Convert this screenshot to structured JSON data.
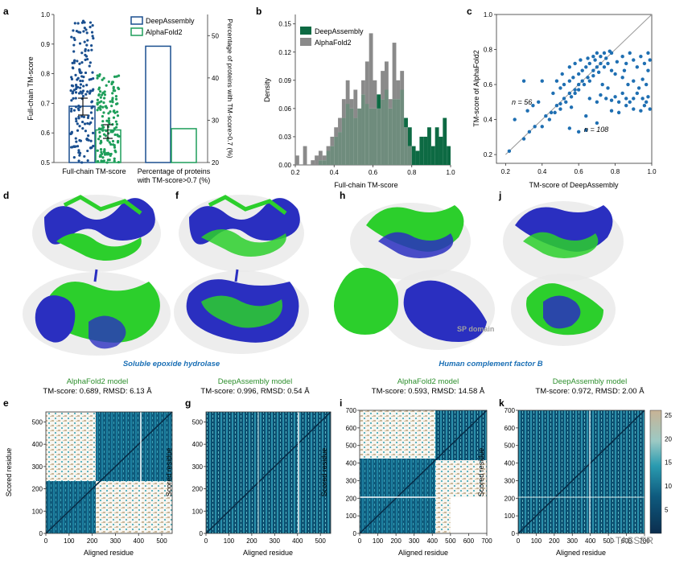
{
  "colors": {
    "deepassembly": "#1a4f8f",
    "alphafold2": "#1e9e5a",
    "da_hist": "#0d6a43",
    "af_hist": "#8a8a8a",
    "overlap_hist": "#6f8c7d",
    "scatter": "#1f6fb2",
    "protein_blue": "#2a2fc0",
    "protein_green": "#2ccf2c",
    "caption_blue": "#1a6fb5",
    "model_green": "#2d8f2d"
  },
  "panels": {
    "a": "a",
    "b": "b",
    "c": "c",
    "d": "d",
    "f": "f",
    "h": "h",
    "j": "j",
    "e": "e",
    "g": "g",
    "i": "i",
    "k": "k"
  },
  "panel_a": {
    "legend": [
      "DeepAssembly",
      "AlphaFold2"
    ],
    "ylabel_left": "Full-chain TM-score",
    "ylabel_right": "Percentage of proteins with TM-score>0.7 (%)",
    "xtick_left": "Full-chain TM-score",
    "xtick_right_line1": "Percentage of proteins",
    "xtick_right_line2": "with TM-score>0.7 (%)",
    "yticks_left": [
      "0.5",
      "0.6",
      "0.7",
      "0.8",
      "0.9",
      "1.0"
    ],
    "yticks_right": [
      "20",
      "30",
      "40",
      "50"
    ]
  },
  "panel_b": {
    "legend": [
      "DeepAssembly",
      "AlphaFold2"
    ],
    "ylabel": "Density",
    "xlabel": "Full-chain TM-score",
    "xticks": [
      "0.2",
      "0.4",
      "0.6",
      "0.8",
      "1.0"
    ],
    "yticks": [
      "0.00",
      "0.03",
      "0.06",
      "0.09",
      "0.12",
      "0.15"
    ]
  },
  "panel_c": {
    "ylabel": "TM-score of AlphaFold2",
    "xlabel": "TM-score of DeepAssembly",
    "ticks": [
      "0.2",
      "0.4",
      "0.6",
      "0.8",
      "1.0"
    ],
    "n_upper": "n = 56",
    "n_lower": "n = 108"
  },
  "captions": {
    "epoxide": "Soluble epoxide hydrolase",
    "factorB": "Human complement factor B",
    "sp_domain": "SP domain"
  },
  "models": {
    "d_title": "AlphaFold2 model",
    "d_score": "TM-score: 0.689, RMSD: 6.13 Å",
    "f_title": "DeepAssembly model",
    "f_score": "TM-score: 0.996, RMSD: 0.54 Å",
    "h_title": "AlphaFold2 model",
    "h_score": "TM-score: 0.593, RMSD: 14.58 Å",
    "j_title": "DeepAssembly model",
    "j_score": "TM-score: 0.972, RMSD: 2.00 Å"
  },
  "heatmaps": {
    "xlabel": "Aligned residue",
    "ylabel": "Scored residue",
    "ticks_545": [
      "0",
      "100",
      "200",
      "300",
      "400",
      "500"
    ],
    "ticks_700": [
      "0",
      "100",
      "200",
      "300",
      "400",
      "500",
      "600",
      "700"
    ],
    "colorbar_ticks": [
      "5",
      "10",
      "15",
      "20",
      "25"
    ],
    "watermark": "I-TASSER"
  },
  "chart_data": [
    {
      "panel": "a",
      "type": "bar",
      "categories": [
        "Full-chain TM-score",
        "Percentage of proteins with TM-score>0.7 (%)"
      ],
      "series": [
        {
          "name": "DeepAssembly",
          "values": [
            0.69,
            47.5
          ]
        },
        {
          "name": "AlphaFold2",
          "values": [
            0.61,
            28
          ]
        }
      ],
      "ylim_left": [
        0.5,
        1.0
      ],
      "ylim_right": [
        20,
        55
      ]
    },
    {
      "panel": "b",
      "type": "histogram",
      "xlabel": "Full-chain TM-score",
      "ylabel": "Density",
      "bin_start": 0.2,
      "bin_width": 0.02,
      "series": [
        {
          "name": "AlphaFold2",
          "values": [
            0.01,
            0,
            0.02,
            0,
            0.005,
            0.01,
            0.015,
            0.01,
            0.02,
            0.03,
            0.04,
            0.05,
            0.07,
            0.09,
            0.07,
            0.08,
            0.06,
            0.09,
            0.11,
            0.14,
            0.09,
            0.06,
            0.1,
            0.11,
            0.07,
            0.13,
            0.09,
            0.1,
            0.04,
            0.02,
            0,
            0,
            0,
            0,
            0,
            0,
            0,
            0,
            0,
            0
          ]
        },
        {
          "name": "DeepAssembly",
          "values": [
            0,
            0,
            0,
            0,
            0,
            0,
            0.005,
            0.005,
            0.015,
            0.02,
            0.03,
            0.035,
            0.05,
            0.065,
            0.06,
            0.05,
            0.06,
            0.075,
            0.065,
            0.06,
            0.06,
            0.075,
            0.07,
            0.08,
            0.06,
            0.07,
            0.07,
            0.08,
            0.05,
            0.04,
            0.02,
            0.015,
            0.03,
            0.03,
            0.04,
            0.02,
            0.04,
            0.03,
            0.05,
            0.02
          ]
        }
      ],
      "xlim": [
        0.2,
        1.0
      ],
      "ylim": [
        0,
        0.16
      ]
    },
    {
      "panel": "c",
      "type": "scatter",
      "xlabel": "TM-score of DeepAssembly",
      "ylabel": "TM-score of AlphaFold2",
      "xlim": [
        0.15,
        1.0
      ],
      "ylim": [
        0.15,
        1.0
      ],
      "points": [
        [
          0.22,
          0.22
        ],
        [
          0.3,
          0.29
        ],
        [
          0.33,
          0.33
        ],
        [
          0.36,
          0.36
        ],
        [
          0.42,
          0.42
        ],
        [
          0.45,
          0.44
        ],
        [
          0.48,
          0.48
        ],
        [
          0.5,
          0.49
        ],
        [
          0.52,
          0.52
        ],
        [
          0.55,
          0.55
        ],
        [
          0.58,
          0.57
        ],
        [
          0.6,
          0.6
        ],
        [
          0.62,
          0.62
        ],
        [
          0.65,
          0.64
        ],
        [
          0.68,
          0.68
        ],
        [
          0.7,
          0.7
        ],
        [
          0.72,
          0.72
        ],
        [
          0.75,
          0.75
        ],
        [
          0.78,
          0.78
        ],
        [
          0.4,
          0.36
        ],
        [
          0.44,
          0.4
        ],
        [
          0.47,
          0.44
        ],
        [
          0.5,
          0.46
        ],
        [
          0.53,
          0.5
        ],
        [
          0.56,
          0.53
        ],
        [
          0.58,
          0.55
        ],
        [
          0.6,
          0.57
        ],
        [
          0.63,
          0.6
        ],
        [
          0.66,
          0.62
        ],
        [
          0.68,
          0.65
        ],
        [
          0.71,
          0.67
        ],
        [
          0.74,
          0.7
        ],
        [
          0.46,
          0.55
        ],
        [
          0.5,
          0.58
        ],
        [
          0.52,
          0.6
        ],
        [
          0.55,
          0.62
        ],
        [
          0.57,
          0.64
        ],
        [
          0.6,
          0.66
        ],
        [
          0.62,
          0.68
        ],
        [
          0.64,
          0.7
        ],
        [
          0.66,
          0.72
        ],
        [
          0.69,
          0.74
        ],
        [
          0.72,
          0.76
        ],
        [
          0.74,
          0.78
        ],
        [
          0.77,
          0.79
        ],
        [
          0.48,
          0.62
        ],
        [
          0.51,
          0.66
        ],
        [
          0.55,
          0.7
        ],
        [
          0.58,
          0.72
        ],
        [
          0.61,
          0.74
        ],
        [
          0.65,
          0.75
        ],
        [
          0.68,
          0.76
        ],
        [
          0.7,
          0.78
        ],
        [
          0.25,
          0.4
        ],
        [
          0.32,
          0.45
        ],
        [
          0.35,
          0.48
        ],
        [
          0.38,
          0.5
        ],
        [
          0.3,
          0.62
        ],
        [
          0.4,
          0.62
        ],
        [
          0.55,
          0.35
        ],
        [
          0.6,
          0.33
        ],
        [
          0.64,
          0.34
        ],
        [
          0.66,
          0.52
        ],
        [
          0.7,
          0.5
        ],
        [
          0.72,
          0.54
        ],
        [
          0.75,
          0.52
        ],
        [
          0.78,
          0.51
        ],
        [
          0.8,
          0.53
        ],
        [
          0.82,
          0.5
        ],
        [
          0.84,
          0.55
        ],
        [
          0.86,
          0.52
        ],
        [
          0.88,
          0.5
        ],
        [
          0.9,
          0.52
        ],
        [
          0.92,
          0.55
        ],
        [
          0.95,
          0.52
        ],
        [
          0.97,
          0.5
        ],
        [
          0.98,
          0.53
        ],
        [
          0.78,
          0.45
        ],
        [
          0.82,
          0.44
        ],
        [
          0.86,
          0.48
        ],
        [
          0.9,
          0.46
        ],
        [
          0.94,
          0.45
        ],
        [
          0.96,
          0.48
        ],
        [
          0.99,
          0.46
        ],
        [
          0.81,
          0.73
        ],
        [
          0.84,
          0.76
        ],
        [
          0.86,
          0.72
        ],
        [
          0.88,
          0.78
        ],
        [
          0.9,
          0.74
        ],
        [
          0.92,
          0.7
        ],
        [
          0.94,
          0.76
        ],
        [
          0.96,
          0.72
        ],
        [
          0.98,
          0.68
        ],
        [
          0.99,
          0.74
        ],
        [
          0.97,
          0.6
        ],
        [
          0.95,
          0.63
        ],
        [
          0.93,
          0.58
        ],
        [
          0.9,
          0.62
        ],
        [
          0.87,
          0.6
        ],
        [
          0.84,
          0.64
        ],
        [
          0.8,
          0.66
        ],
        [
          0.78,
          0.68
        ],
        [
          0.76,
          0.72
        ],
        [
          0.98,
          0.78
        ],
        [
          0.85,
          0.68
        ],
        [
          0.7,
          0.38
        ],
        [
          0.64,
          0.42
        ],
        [
          0.76,
          0.58
        ],
        [
          0.73,
          0.6
        ],
        [
          0.56,
          0.47
        ]
      ]
    }
  ]
}
